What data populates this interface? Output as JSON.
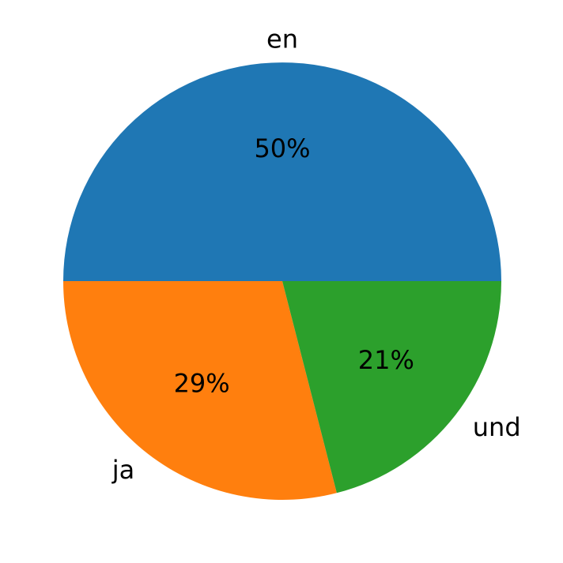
{
  "chart_data": {
    "type": "pie",
    "categories": [
      "en",
      "ja",
      "und"
    ],
    "values": [
      50,
      29,
      21
    ],
    "value_labels": [
      "50%",
      "29%",
      "21%"
    ],
    "colors": [
      "#1f77b4",
      "#ff7f0e",
      "#2ca02c"
    ]
  }
}
